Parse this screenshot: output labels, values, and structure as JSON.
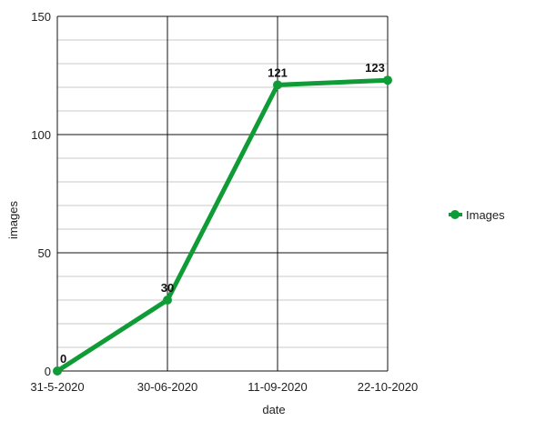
{
  "chart_data": {
    "type": "line",
    "title": "",
    "xlabel": "date",
    "ylabel": "images",
    "categories": [
      "31-5-2020",
      "30-06-2020",
      "11-09-2020",
      "22-10-2020"
    ],
    "series": [
      {
        "name": "Images",
        "values": [
          0,
          30,
          121,
          123
        ],
        "color": "#0f9b36"
      }
    ],
    "data_labels": [
      "0",
      "30",
      "121",
      "123"
    ],
    "ylim": [
      0,
      150
    ],
    "y_major_ticks": [
      0,
      50,
      100,
      150
    ],
    "y_minor_step": 10,
    "grid": true,
    "legend_position": "right"
  }
}
